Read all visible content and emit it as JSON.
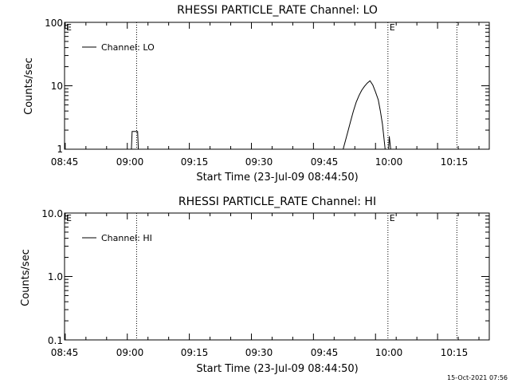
{
  "footer_timestamp": "15-Oct-2021 07:56",
  "chart_data": [
    {
      "type": "line",
      "title": "RHESSI PARTICLE_RATE Channel: LO",
      "xlabel": "Start Time (23-Jul-09 08:44:50)",
      "ylabel": "Counts/sec",
      "y_scale": "log",
      "ylim": [
        1,
        100
      ],
      "yticks": [
        "1",
        "10",
        "100"
      ],
      "xticks": [
        "08:45",
        "09:00",
        "09:15",
        "09:30",
        "09:45",
        "10:00",
        "10:15"
      ],
      "xlim": [
        "08:44:50",
        "10:27:30"
      ],
      "grid": false,
      "legend_position": "top-left",
      "series": [
        {
          "name": "Channel: LO",
          "color": "#000000",
          "segments": [
            [
              {
                "t": "09:01:00",
                "y": 1.0
              },
              {
                "t": "09:01:10",
                "y": 1.9
              },
              {
                "t": "09:02:30",
                "y": 1.9
              },
              {
                "t": "09:02:40",
                "y": 1.0
              }
            ],
            [
              {
                "t": "09:52:10",
                "y": 1.0
              },
              {
                "t": "09:53:20",
                "y": 1.9
              },
              {
                "t": "09:54:00",
                "y": 2.8
              },
              {
                "t": "09:54:40",
                "y": 4.0
              },
              {
                "t": "09:55:20",
                "y": 5.5
              },
              {
                "t": "09:56:00",
                "y": 7.0
              },
              {
                "t": "09:56:40",
                "y": 8.5
              },
              {
                "t": "09:57:20",
                "y": 9.8
              },
              {
                "t": "09:58:00",
                "y": 11.0
              },
              {
                "t": "09:58:40",
                "y": 12.0
              },
              {
                "t": "09:59:20",
                "y": 10.3
              },
              {
                "t": "10:00:00",
                "y": 8.0
              },
              {
                "t": "10:00:40",
                "y": 6.0
              },
              {
                "t": "10:01:10",
                "y": 4.0
              },
              {
                "t": "10:01:40",
                "y": 2.5
              },
              {
                "t": "10:02:00",
                "y": 1.6
              },
              {
                "t": "10:02:20",
                "y": 1.0
              }
            ],
            [
              {
                "t": "10:03:10",
                "y": 1.0
              },
              {
                "t": "10:03:20",
                "y": 1.6
              },
              {
                "t": "10:03:40",
                "y": 1.0
              }
            ]
          ]
        }
      ],
      "markers": [
        {
          "t": "08:44:50",
          "label": "E"
        },
        {
          "t": "09:02:15",
          "label": ""
        },
        {
          "t": "10:03:00",
          "label": "E"
        },
        {
          "t": "10:19:40",
          "label": ""
        }
      ]
    },
    {
      "type": "line",
      "title": "RHESSI PARTICLE_RATE Channel: HI",
      "xlabel": "Start Time (23-Jul-09 08:44:50)",
      "ylabel": "Counts/sec",
      "y_scale": "log",
      "ylim": [
        0.1,
        10
      ],
      "yticks": [
        "0.1",
        "1.0",
        "10.0"
      ],
      "xticks": [
        "08:45",
        "09:00",
        "09:15",
        "09:30",
        "09:45",
        "10:00",
        "10:15"
      ],
      "xlim": [
        "08:44:50",
        "10:27:30"
      ],
      "grid": false,
      "legend_position": "top-left",
      "series": [
        {
          "name": "Channel: HI",
          "color": "#000000",
          "segments": []
        }
      ],
      "markers": [
        {
          "t": "08:44:50",
          "label": "E"
        },
        {
          "t": "09:02:15",
          "label": ""
        },
        {
          "t": "10:03:00",
          "label": "E"
        },
        {
          "t": "10:19:40",
          "label": ""
        }
      ]
    }
  ]
}
